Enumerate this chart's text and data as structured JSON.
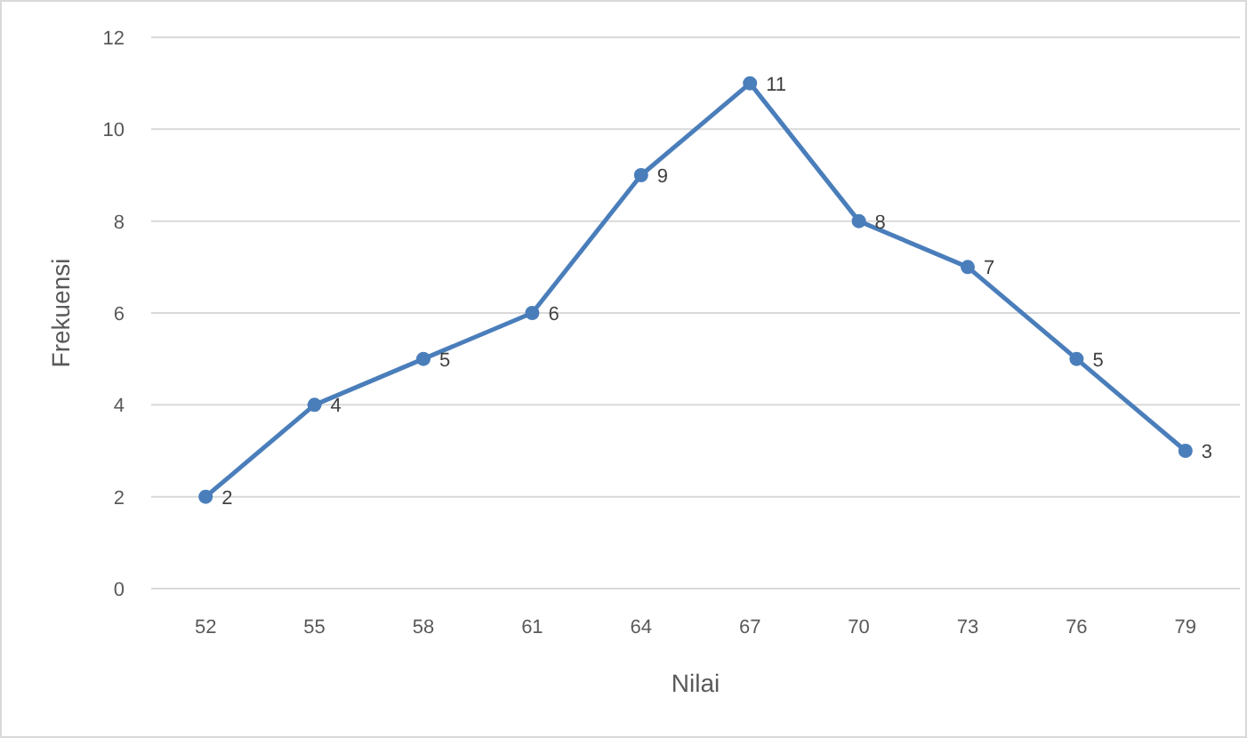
{
  "chart_data": {
    "type": "line",
    "xlabel": "Nilai",
    "ylabel": "Frekuensi",
    "categories": [
      "52",
      "55",
      "58",
      "61",
      "64",
      "67",
      "70",
      "73",
      "76",
      "79"
    ],
    "series": [
      {
        "color": "#4a7ebb",
        "values": [
          2,
          4,
          5,
          6,
          9,
          11,
          8,
          7,
          5,
          3
        ]
      }
    ],
    "ylim": [
      0,
      12
    ],
    "yticks": [
      0,
      2,
      4,
      6,
      8,
      10,
      12
    ],
    "grid": "y",
    "marker": "circle",
    "line_style": "solid",
    "data_labels": true
  }
}
